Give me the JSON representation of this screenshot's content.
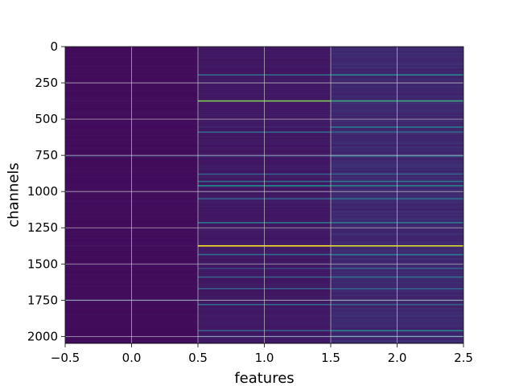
{
  "chart_data": {
    "type": "heatmap",
    "title": "",
    "xlabel": "features",
    "ylabel": "channels",
    "xlim": [
      -0.5,
      2.5
    ],
    "ylim": [
      2048,
      0
    ],
    "x_ticks": [
      "−0.5",
      "0.0",
      "0.5",
      "1.0",
      "1.5",
      "2.0",
      "2.5"
    ],
    "x_tick_values": [
      -0.5,
      0.0,
      0.5,
      1.0,
      1.5,
      2.0,
      2.5
    ],
    "y_ticks": [
      "0",
      "250",
      "500",
      "750",
      "1000",
      "1250",
      "1500",
      "1750",
      "2000"
    ],
    "y_tick_values": [
      0,
      250,
      500,
      750,
      1000,
      1250,
      1500,
      1750,
      2000
    ],
    "grid": true,
    "colormap": "viridis",
    "columns": [
      0,
      1,
      2
    ],
    "rows": 2048,
    "column_base_values": [
      0.03,
      0.06,
      0.1
    ],
    "highlights": [
      {
        "channel": 195,
        "values": [
          0.04,
          0.35,
          0.45
        ]
      },
      {
        "channel": 375,
        "values": [
          0.05,
          0.8,
          0.6
        ]
      },
      {
        "channel": 590,
        "values": [
          0.03,
          0.35,
          0.3
        ]
      },
      {
        "channel": 555,
        "values": [
          0.03,
          0.12,
          0.4
        ]
      },
      {
        "channel": 755,
        "values": [
          0.15,
          0.2,
          0.35
        ]
      },
      {
        "channel": 880,
        "values": [
          0.03,
          0.3,
          0.3
        ]
      },
      {
        "channel": 930,
        "values": [
          0.03,
          0.35,
          0.4
        ]
      },
      {
        "channel": 960,
        "values": [
          0.04,
          0.5,
          0.45
        ]
      },
      {
        "channel": 1050,
        "values": [
          0.03,
          0.3,
          0.35
        ]
      },
      {
        "channel": 1215,
        "values": [
          0.03,
          0.4,
          0.4
        ]
      },
      {
        "channel": 1375,
        "values": [
          0.06,
          1.0,
          0.95
        ]
      },
      {
        "channel": 1435,
        "values": [
          0.03,
          0.35,
          0.4
        ]
      },
      {
        "channel": 1530,
        "values": [
          0.03,
          0.2,
          0.3
        ]
      },
      {
        "channel": 1590,
        "values": [
          0.03,
          0.3,
          0.35
        ]
      },
      {
        "channel": 1670,
        "values": [
          0.03,
          0.3,
          0.3
        ]
      },
      {
        "channel": 1750,
        "values": [
          0.2,
          0.12,
          0.25
        ]
      },
      {
        "channel": 1780,
        "values": [
          0.03,
          0.35,
          0.3
        ]
      },
      {
        "channel": 1960,
        "values": [
          0.03,
          0.3,
          0.45
        ]
      },
      {
        "channel": 2000,
        "values": [
          0.03,
          0.2,
          0.3
        ]
      }
    ],
    "colors": {
      "background": "#ffffff",
      "grid": "#d0d0d0",
      "axis": "#000000"
    }
  }
}
